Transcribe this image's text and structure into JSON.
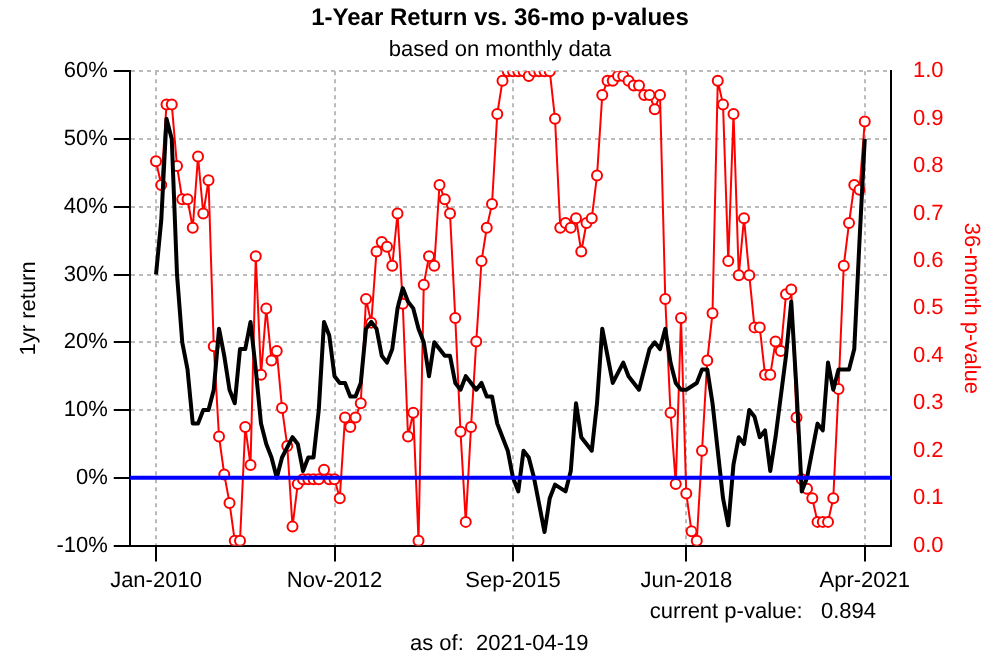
{
  "chart_data": {
    "type": "line",
    "title": "1-Year Return vs. 36-mo p-values",
    "subtitle": "based on monthly data",
    "ylabel": "1yr return",
    "y2label": "36-month p-value",
    "annotations": [
      "current p-value:   0.894",
      "as of:  2021-04-19"
    ],
    "xlim": [
      "2009-08",
      "2021-09"
    ],
    "xticks": [
      {
        "value": "2010-01",
        "label": "Jan-2010"
      },
      {
        "value": "2012-11",
        "label": "Nov-2012"
      },
      {
        "value": "2015-09",
        "label": "Sep-2015"
      },
      {
        "value": "2018-06",
        "label": "Jun-2018"
      },
      {
        "value": "2021-04",
        "label": "Apr-2021"
      }
    ],
    "ylim": [
      -10,
      60
    ],
    "yticks": [
      {
        "value": -10,
        "label": "-10%"
      },
      {
        "value": 0,
        "label": "0%"
      },
      {
        "value": 10,
        "label": "10%"
      },
      {
        "value": 20,
        "label": "20%"
      },
      {
        "value": 30,
        "label": "30%"
      },
      {
        "value": 40,
        "label": "40%"
      },
      {
        "value": 50,
        "label": "50%"
      },
      {
        "value": 60,
        "label": "60%"
      }
    ],
    "y2lim": [
      0,
      1
    ],
    "y2ticks": [
      {
        "value": 0,
        "label": "0.0"
      },
      {
        "value": 0.1,
        "label": "0.1"
      },
      {
        "value": 0.2,
        "label": "0.2"
      },
      {
        "value": 0.3,
        "label": "0.3"
      },
      {
        "value": 0.4,
        "label": "0.4"
      },
      {
        "value": 0.5,
        "label": "0.5"
      },
      {
        "value": 0.6,
        "label": "0.6"
      },
      {
        "value": 0.7,
        "label": "0.7"
      },
      {
        "value": 0.8,
        "label": "0.8"
      },
      {
        "value": 0.9,
        "label": "0.9"
      },
      {
        "value": 1,
        "label": "1.0"
      }
    ],
    "grid": true,
    "legend": false,
    "line_style": "solid",
    "ref_lines": [
      {
        "axis": "y",
        "value": 0,
        "color": "#0000ff"
      }
    ],
    "x": [
      "2010-01",
      "2010-02",
      "2010-03",
      "2010-04",
      "2010-05",
      "2010-06",
      "2010-07",
      "2010-08",
      "2010-09",
      "2010-10",
      "2010-11",
      "2010-12",
      "2011-01",
      "2011-02",
      "2011-03",
      "2011-04",
      "2011-05",
      "2011-06",
      "2011-07",
      "2011-08",
      "2011-09",
      "2011-10",
      "2011-11",
      "2011-12",
      "2012-01",
      "2012-02",
      "2012-03",
      "2012-04",
      "2012-05",
      "2012-06",
      "2012-07",
      "2012-08",
      "2012-09",
      "2012-10",
      "2012-11",
      "2012-12",
      "2013-01",
      "2013-02",
      "2013-03",
      "2013-04",
      "2013-05",
      "2013-06",
      "2013-07",
      "2013-08",
      "2013-09",
      "2013-10",
      "2013-11",
      "2013-12",
      "2014-01",
      "2014-02",
      "2014-03",
      "2014-04",
      "2014-05",
      "2014-06",
      "2014-07",
      "2014-08",
      "2014-09",
      "2014-10",
      "2014-11",
      "2014-12",
      "2015-01",
      "2015-02",
      "2015-03",
      "2015-04",
      "2015-05",
      "2015-06",
      "2015-07",
      "2015-08",
      "2015-09",
      "2015-10",
      "2015-11",
      "2015-12",
      "2016-01",
      "2016-02",
      "2016-03",
      "2016-04",
      "2016-05",
      "2016-06",
      "2016-07",
      "2016-08",
      "2016-09",
      "2016-10",
      "2016-11",
      "2016-12",
      "2017-01",
      "2017-02",
      "2017-03",
      "2017-04",
      "2017-05",
      "2017-06",
      "2017-07",
      "2017-08",
      "2017-09",
      "2017-10",
      "2017-11",
      "2017-12",
      "2018-01",
      "2018-02",
      "2018-03",
      "2018-04",
      "2018-05",
      "2018-06",
      "2018-07",
      "2018-08",
      "2018-09",
      "2018-10",
      "2018-11",
      "2018-12",
      "2019-01",
      "2019-02",
      "2019-03",
      "2019-04",
      "2019-05",
      "2019-06",
      "2019-07",
      "2019-08",
      "2019-09",
      "2019-10",
      "2019-11",
      "2019-12",
      "2020-01",
      "2020-02",
      "2020-03",
      "2020-04",
      "2020-05",
      "2020-06",
      "2020-07",
      "2020-08",
      "2020-09",
      "2020-10",
      "2020-11",
      "2020-12",
      "2021-01",
      "2021-02",
      "2021-03",
      "2021-04"
    ],
    "series": [
      {
        "type": "line",
        "axis": "y2",
        "color": "#ff0000",
        "marker": "circle",
        "values": [
          0.81,
          0.76,
          0.93,
          0.93,
          0.8,
          0.73,
          0.73,
          0.67,
          0.82,
          0.7,
          0.77,
          0.42,
          0.23,
          0.15,
          0.09,
          0.01,
          0.01,
          0.25,
          0.17,
          0.61,
          0.36,
          0.5,
          0.39,
          0.41,
          0.29,
          0.21,
          0.04,
          0.13,
          0.14,
          0.14,
          0.14,
          0.14,
          0.16,
          0.14,
          0.14,
          0.1,
          0.27,
          0.25,
          0.27,
          0.3,
          0.52,
          0.47,
          0.62,
          0.64,
          0.63,
          0.59,
          0.7,
          0.51,
          0.23,
          0.28,
          0.01,
          0.55,
          0.61,
          0.59,
          0.76,
          0.73,
          0.7,
          0.48,
          0.24,
          0.05,
          0.25,
          0.43,
          0.6,
          0.67,
          0.72,
          0.91,
          0.98,
          1.0,
          1.0,
          1.0,
          1.0,
          0.99,
          1.0,
          1.0,
          1.0,
          1.0,
          0.9,
          0.67,
          0.68,
          0.67,
          0.69,
          0.62,
          0.68,
          0.69,
          0.78,
          0.95,
          0.98,
          0.98,
          0.99,
          0.99,
          0.98,
          0.97,
          0.97,
          0.95,
          0.95,
          0.92,
          0.95,
          0.52,
          0.28,
          0.13,
          0.48,
          0.11,
          0.03,
          0.01,
          0.2,
          0.39,
          0.49,
          0.98,
          0.93,
          0.6,
          0.91,
          0.57,
          0.69,
          0.57,
          0.46,
          0.46,
          0.36,
          0.36,
          0.43,
          0.41,
          0.53,
          0.54,
          0.27,
          0.14,
          0.12,
          0.1,
          0.05,
          0.05,
          0.05,
          0.1,
          0.33,
          0.59,
          0.68,
          0.76,
          0.75,
          0.894
        ]
      },
      {
        "type": "line",
        "axis": "y",
        "color": "#000000",
        "marker": "none",
        "x": [
          "2010-01",
          "2010-02",
          "2010-03",
          "2010-04",
          "2010-05",
          "2010-06",
          "2010-07",
          "2010-08",
          "2010-09",
          "2010-10",
          "2010-11",
          "2010-12",
          "2011-01",
          "2011-02",
          "2011-03",
          "2011-04",
          "2011-05",
          "2011-06",
          "2011-07",
          "2011-08",
          "2011-09",
          "2011-10",
          "2011-11",
          "2011-12",
          "2012-01",
          "2012-03",
          "2012-04",
          "2012-05",
          "2012-06",
          "2012-07",
          "2012-08",
          "2012-09",
          "2012-10",
          "2012-11",
          "2012-12",
          "2013-01",
          "2013-02",
          "2013-03",
          "2013-04",
          "2013-05",
          "2013-06",
          "2013-07",
          "2013-08",
          "2013-09",
          "2013-10",
          "2013-11",
          "2013-12",
          "2014-01",
          "2014-02",
          "2014-03",
          "2014-04",
          "2014-05",
          "2014-06",
          "2014-07",
          "2014-08",
          "2014-09",
          "2014-10",
          "2014-11",
          "2014-12",
          "2015-01",
          "2015-02",
          "2015-03",
          "2015-04",
          "2015-05",
          "2015-06",
          "2015-07",
          "2015-08",
          "2015-09",
          "2015-10",
          "2015-11",
          "2015-12",
          "2016-01",
          "2016-02",
          "2016-03",
          "2016-04",
          "2016-05",
          "2016-07",
          "2016-08",
          "2016-09",
          "2016-10",
          "2016-12",
          "2017-01",
          "2017-02",
          "2017-03",
          "2017-04",
          "2017-06",
          "2017-07",
          "2017-09",
          "2017-11",
          "2017-12",
          "2018-01",
          "2018-02",
          "2018-03",
          "2018-04",
          "2018-05",
          "2018-06",
          "2018-08",
          "2018-09",
          "2018-10",
          "2018-11",
          "2018-12",
          "2019-01",
          "2019-02",
          "2019-03",
          "2019-04",
          "2019-05",
          "2019-06",
          "2019-07",
          "2019-08",
          "2019-09",
          "2019-10",
          "2019-11",
          "2019-12",
          "2020-01",
          "2020-02",
          "2020-03",
          "2020-04",
          "2020-05",
          "2020-06",
          "2020-07",
          "2020-08",
          "2020-09",
          "2020-10",
          "2020-11",
          "2020-12",
          "2021-01",
          "2021-02",
          "2021-03",
          "2021-04"
        ],
        "values": [
          30,
          38,
          53,
          50,
          30,
          20,
          16,
          8,
          8,
          10,
          10,
          13,
          22,
          18,
          13,
          11,
          19,
          19,
          23,
          16,
          8,
          5,
          3,
          0,
          3,
          6,
          5,
          1,
          3,
          3,
          10,
          23,
          21,
          15,
          14,
          14,
          12,
          12,
          14,
          22,
          23,
          22,
          18,
          17,
          19,
          25,
          28,
          26,
          25,
          22,
          20,
          15,
          20,
          19,
          18,
          18,
          14,
          13,
          15,
          14,
          13,
          14,
          12,
          12,
          8,
          6,
          4,
          0,
          -2,
          4,
          3,
          0,
          -4,
          -8,
          -3,
          -1,
          -2,
          1,
          11,
          6,
          4,
          11,
          22,
          18,
          14,
          17,
          15,
          13,
          19,
          20,
          19,
          22,
          17,
          14,
          13,
          13,
          14,
          16,
          16,
          11,
          4,
          -3,
          -7,
          2,
          6,
          5,
          10,
          9,
          6,
          7,
          1,
          6,
          12,
          18,
          26,
          13,
          -2,
          0,
          4,
          8,
          7,
          17,
          13,
          16,
          16,
          16,
          19,
          35,
          50
        ]
      }
    ]
  }
}
